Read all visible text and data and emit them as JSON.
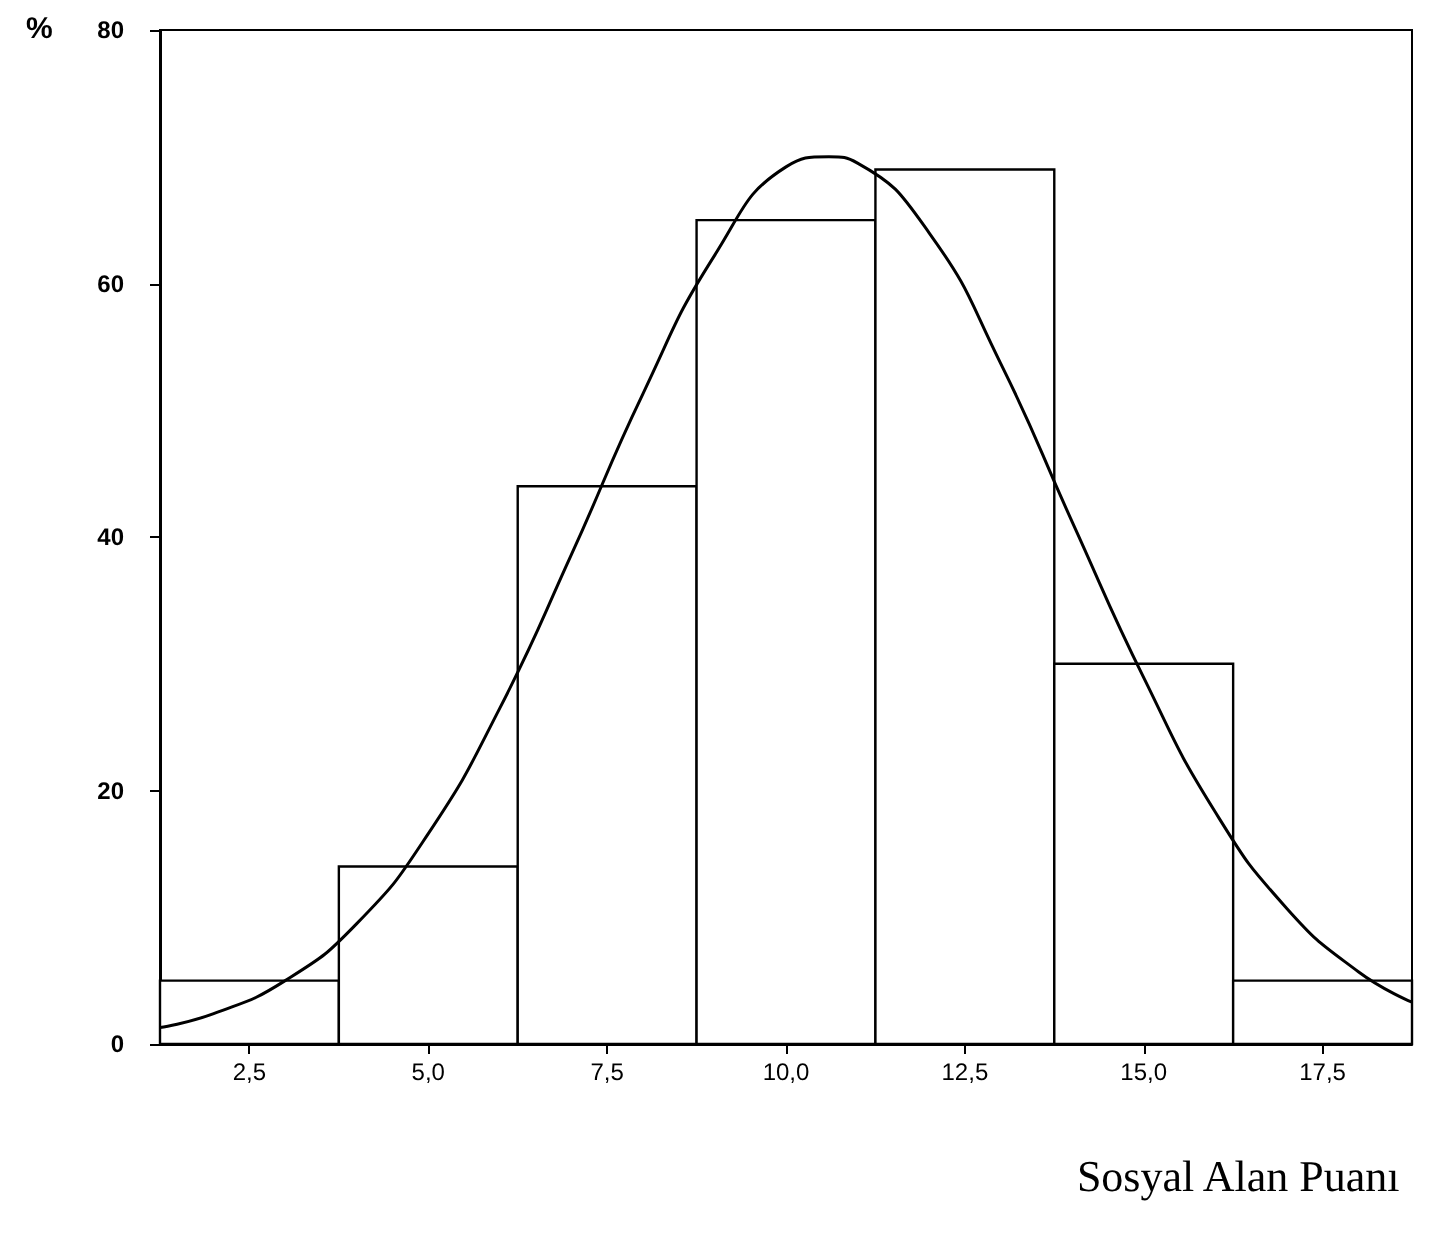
{
  "chart_data": {
    "type": "histogram",
    "xlabel": "Sosyal Alan Puanı",
    "ylabel": "%",
    "series": [
      {
        "color": "#ffffff",
        "bins": [
          1.25,
          3.75,
          6.25,
          8.75,
          11.25,
          13.75,
          16.25,
          18.75
        ],
        "values": [
          5,
          14,
          44,
          65,
          69,
          30,
          5
        ]
      },
      {
        "type": "line",
        "color": "#000000",
        "x": [
          1.25,
          2,
          3,
          4,
          5,
          6,
          7,
          8,
          9,
          10,
          10.6,
          11,
          12,
          13,
          14,
          15,
          16,
          17,
          18,
          18.75
        ],
        "values": [
          1.3,
          2.4,
          5,
          9.5,
          16.6,
          26.5,
          38.6,
          51.3,
          62.2,
          69.2,
          70,
          69.5,
          64,
          53.7,
          41.2,
          28.9,
          18.3,
          10.7,
          5.7,
          3.3
        ]
      }
    ],
    "xlim": [
      1.25,
      18.75
    ],
    "xticks": [
      {
        "value": 2.5,
        "label": "2,5"
      },
      {
        "value": 5,
        "label": "5,0"
      },
      {
        "value": 7.5,
        "label": "7,5"
      },
      {
        "value": 10,
        "label": "10,0"
      },
      {
        "value": 12.5,
        "label": "12,5"
      },
      {
        "value": 15,
        "label": "15,0"
      },
      {
        "value": 17.5,
        "label": "17,5"
      }
    ],
    "ylim": [
      0,
      80
    ],
    "yticks": [
      0,
      20,
      40,
      60,
      80
    ],
    "grid": false
  }
}
